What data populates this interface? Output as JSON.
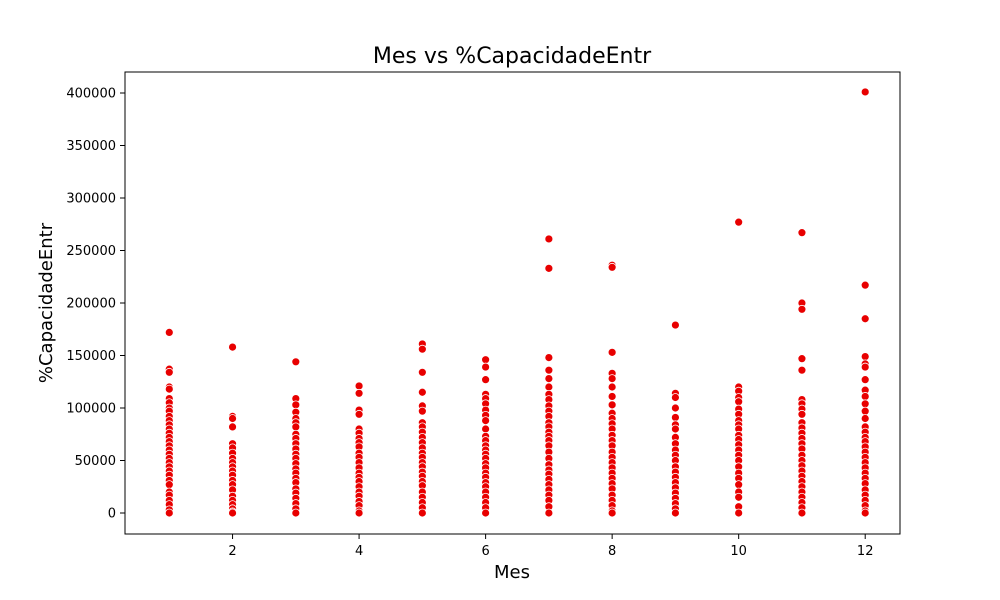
{
  "chart_data": {
    "type": "scatter",
    "title": "Mes vs %CapacidadeEntr",
    "xlabel": "Mes",
    "ylabel": "%CapacidadeEntr",
    "xlim": [
      0.3,
      12.55
    ],
    "ylim": [
      -20000,
      420000
    ],
    "xticks": [
      2,
      4,
      6,
      8,
      10,
      12
    ],
    "yticks": [
      0,
      50000,
      100000,
      150000,
      200000,
      250000,
      300000,
      350000,
      400000
    ],
    "grid": false,
    "legend": "none",
    "color": "#e80000",
    "series": [
      {
        "points": [
          [
            1,
            172000
          ],
          [
            1,
            137000
          ],
          [
            1,
            134000
          ],
          [
            1,
            120000
          ],
          [
            1,
            118000
          ],
          [
            1,
            109000
          ],
          [
            1,
            105000
          ],
          [
            1,
            100000
          ],
          [
            1,
            97000
          ],
          [
            1,
            92000
          ],
          [
            1,
            88000
          ],
          [
            1,
            84000
          ],
          [
            1,
            80000
          ],
          [
            1,
            76000
          ],
          [
            1,
            72000
          ],
          [
            1,
            68000
          ],
          [
            1,
            64000
          ],
          [
            1,
            60000
          ],
          [
            1,
            56000
          ],
          [
            1,
            52000
          ],
          [
            1,
            48000
          ],
          [
            1,
            44000
          ],
          [
            1,
            40000
          ],
          [
            1,
            36000
          ],
          [
            1,
            31000
          ],
          [
            1,
            27000
          ],
          [
            1,
            20000
          ],
          [
            1,
            17000
          ],
          [
            1,
            12000
          ],
          [
            1,
            8000
          ],
          [
            1,
            3000
          ],
          [
            1,
            0
          ],
          [
            2,
            158000
          ],
          [
            2,
            92000
          ],
          [
            2,
            90000
          ],
          [
            2,
            82000
          ],
          [
            2,
            66000
          ],
          [
            2,
            62000
          ],
          [
            2,
            57000
          ],
          [
            2,
            52000
          ],
          [
            2,
            48000
          ],
          [
            2,
            44000
          ],
          [
            2,
            40000
          ],
          [
            2,
            36000
          ],
          [
            2,
            31000
          ],
          [
            2,
            27000
          ],
          [
            2,
            22000
          ],
          [
            2,
            16000
          ],
          [
            2,
            12000
          ],
          [
            2,
            8000
          ],
          [
            2,
            4000
          ],
          [
            2,
            1000
          ],
          [
            2,
            0
          ],
          [
            3,
            144000
          ],
          [
            3,
            109000
          ],
          [
            3,
            103000
          ],
          [
            3,
            96000
          ],
          [
            3,
            90000
          ],
          [
            3,
            86000
          ],
          [
            3,
            82000
          ],
          [
            3,
            75000
          ],
          [
            3,
            71000
          ],
          [
            3,
            66000
          ],
          [
            3,
            61000
          ],
          [
            3,
            56000
          ],
          [
            3,
            52000
          ],
          [
            3,
            47000
          ],
          [
            3,
            42000
          ],
          [
            3,
            38000
          ],
          [
            3,
            33000
          ],
          [
            3,
            29000
          ],
          [
            3,
            23000
          ],
          [
            3,
            19000
          ],
          [
            3,
            14000
          ],
          [
            3,
            9000
          ],
          [
            3,
            4000
          ],
          [
            3,
            0
          ],
          [
            4,
            121000
          ],
          [
            4,
            114000
          ],
          [
            4,
            98000
          ],
          [
            4,
            94000
          ],
          [
            4,
            80000
          ],
          [
            4,
            76000
          ],
          [
            4,
            71000
          ],
          [
            4,
            67000
          ],
          [
            4,
            63000
          ],
          [
            4,
            57000
          ],
          [
            4,
            53000
          ],
          [
            4,
            48000
          ],
          [
            4,
            43000
          ],
          [
            4,
            38000
          ],
          [
            4,
            34000
          ],
          [
            4,
            30000
          ],
          [
            4,
            25000
          ],
          [
            4,
            20000
          ],
          [
            4,
            16000
          ],
          [
            4,
            11000
          ],
          [
            4,
            7000
          ],
          [
            4,
            2000
          ],
          [
            4,
            0
          ],
          [
            5,
            161000
          ],
          [
            5,
            156000
          ],
          [
            5,
            134000
          ],
          [
            5,
            115000
          ],
          [
            5,
            102000
          ],
          [
            5,
            97000
          ],
          [
            5,
            86000
          ],
          [
            5,
            82000
          ],
          [
            5,
            77000
          ],
          [
            5,
            72000
          ],
          [
            5,
            67000
          ],
          [
            5,
            62000
          ],
          [
            5,
            57000
          ],
          [
            5,
            53000
          ],
          [
            5,
            48000
          ],
          [
            5,
            44000
          ],
          [
            5,
            39000
          ],
          [
            5,
            35000
          ],
          [
            5,
            30000
          ],
          [
            5,
            26000
          ],
          [
            5,
            20000
          ],
          [
            5,
            15000
          ],
          [
            5,
            10000
          ],
          [
            5,
            5000
          ],
          [
            5,
            0
          ],
          [
            6,
            146000
          ],
          [
            6,
            139000
          ],
          [
            6,
            127000
          ],
          [
            6,
            113000
          ],
          [
            6,
            109000
          ],
          [
            6,
            104000
          ],
          [
            6,
            98000
          ],
          [
            6,
            93000
          ],
          [
            6,
            88000
          ],
          [
            6,
            80000
          ],
          [
            6,
            73000
          ],
          [
            6,
            69000
          ],
          [
            6,
            64000
          ],
          [
            6,
            60000
          ],
          [
            6,
            56000
          ],
          [
            6,
            52000
          ],
          [
            6,
            47000
          ],
          [
            6,
            43000
          ],
          [
            6,
            38000
          ],
          [
            6,
            34000
          ],
          [
            6,
            29000
          ],
          [
            6,
            25000
          ],
          [
            6,
            20000
          ],
          [
            6,
            15000
          ],
          [
            6,
            10000
          ],
          [
            6,
            5000
          ],
          [
            6,
            0
          ],
          [
            7,
            261000
          ],
          [
            7,
            233000
          ],
          [
            7,
            148000
          ],
          [
            7,
            136000
          ],
          [
            7,
            128000
          ],
          [
            7,
            120000
          ],
          [
            7,
            113000
          ],
          [
            7,
            108000
          ],
          [
            7,
            102000
          ],
          [
            7,
            97000
          ],
          [
            7,
            92000
          ],
          [
            7,
            86000
          ],
          [
            7,
            82000
          ],
          [
            7,
            77000
          ],
          [
            7,
            73000
          ],
          [
            7,
            69000
          ],
          [
            7,
            64000
          ],
          [
            7,
            58000
          ],
          [
            7,
            52000
          ],
          [
            7,
            46000
          ],
          [
            7,
            41000
          ],
          [
            7,
            37000
          ],
          [
            7,
            32000
          ],
          [
            7,
            27000
          ],
          [
            7,
            22000
          ],
          [
            7,
            17000
          ],
          [
            7,
            12000
          ],
          [
            7,
            6000
          ],
          [
            7,
            0
          ],
          [
            8,
            236000
          ],
          [
            8,
            234000
          ],
          [
            8,
            153000
          ],
          [
            8,
            133000
          ],
          [
            8,
            128000
          ],
          [
            8,
            120000
          ],
          [
            8,
            111000
          ],
          [
            8,
            103000
          ],
          [
            8,
            95000
          ],
          [
            8,
            90000
          ],
          [
            8,
            85000
          ],
          [
            8,
            80000
          ],
          [
            8,
            74000
          ],
          [
            8,
            69000
          ],
          [
            8,
            64000
          ],
          [
            8,
            58000
          ],
          [
            8,
            53000
          ],
          [
            8,
            48000
          ],
          [
            8,
            43000
          ],
          [
            8,
            38000
          ],
          [
            8,
            33000
          ],
          [
            8,
            28000
          ],
          [
            8,
            23000
          ],
          [
            8,
            17000
          ],
          [
            8,
            12000
          ],
          [
            8,
            7000
          ],
          [
            8,
            2000
          ],
          [
            8,
            0
          ],
          [
            9,
            179000
          ],
          [
            9,
            114000
          ],
          [
            9,
            110000
          ],
          [
            9,
            100000
          ],
          [
            9,
            91000
          ],
          [
            9,
            84000
          ],
          [
            9,
            80000
          ],
          [
            9,
            72000
          ],
          [
            9,
            66000
          ],
          [
            9,
            60000
          ],
          [
            9,
            55000
          ],
          [
            9,
            50000
          ],
          [
            9,
            44000
          ],
          [
            9,
            39000
          ],
          [
            9,
            34000
          ],
          [
            9,
            29000
          ],
          [
            9,
            24000
          ],
          [
            9,
            19000
          ],
          [
            9,
            14000
          ],
          [
            9,
            9000
          ],
          [
            9,
            4000
          ],
          [
            9,
            0
          ],
          [
            10,
            277000
          ],
          [
            10,
            120000
          ],
          [
            10,
            116000
          ],
          [
            10,
            110000
          ],
          [
            10,
            106000
          ],
          [
            10,
            99000
          ],
          [
            10,
            94000
          ],
          [
            10,
            88000
          ],
          [
            10,
            84000
          ],
          [
            10,
            80000
          ],
          [
            10,
            74000
          ],
          [
            10,
            70000
          ],
          [
            10,
            65000
          ],
          [
            10,
            60000
          ],
          [
            10,
            55000
          ],
          [
            10,
            50000
          ],
          [
            10,
            44000
          ],
          [
            10,
            38000
          ],
          [
            10,
            33000
          ],
          [
            10,
            27000
          ],
          [
            10,
            20000
          ],
          [
            10,
            15000
          ],
          [
            10,
            6000
          ],
          [
            10,
            0
          ],
          [
            11,
            267000
          ],
          [
            11,
            200000
          ],
          [
            11,
            194000
          ],
          [
            11,
            147000
          ],
          [
            11,
            136000
          ],
          [
            11,
            108000
          ],
          [
            11,
            104000
          ],
          [
            11,
            99000
          ],
          [
            11,
            94000
          ],
          [
            11,
            86000
          ],
          [
            11,
            81000
          ],
          [
            11,
            76000
          ],
          [
            11,
            71000
          ],
          [
            11,
            66000
          ],
          [
            11,
            61000
          ],
          [
            11,
            55000
          ],
          [
            11,
            50000
          ],
          [
            11,
            45000
          ],
          [
            11,
            40000
          ],
          [
            11,
            35000
          ],
          [
            11,
            30000
          ],
          [
            11,
            25000
          ],
          [
            11,
            20000
          ],
          [
            11,
            15000
          ],
          [
            11,
            10000
          ],
          [
            11,
            5000
          ],
          [
            11,
            0
          ],
          [
            12,
            401000
          ],
          [
            12,
            217000
          ],
          [
            12,
            185000
          ],
          [
            12,
            149000
          ],
          [
            12,
            142000
          ],
          [
            12,
            139000
          ],
          [
            12,
            127000
          ],
          [
            12,
            117000
          ],
          [
            12,
            111000
          ],
          [
            12,
            104000
          ],
          [
            12,
            97000
          ],
          [
            12,
            90000
          ],
          [
            12,
            82000
          ],
          [
            12,
            77000
          ],
          [
            12,
            72000
          ],
          [
            12,
            68000
          ],
          [
            12,
            63000
          ],
          [
            12,
            58000
          ],
          [
            12,
            53000
          ],
          [
            12,
            48000
          ],
          [
            12,
            43000
          ],
          [
            12,
            38000
          ],
          [
            12,
            33000
          ],
          [
            12,
            28000
          ],
          [
            12,
            22000
          ],
          [
            12,
            17000
          ],
          [
            12,
            12000
          ],
          [
            12,
            7000
          ],
          [
            12,
            2000
          ],
          [
            12,
            0
          ]
        ]
      }
    ]
  }
}
